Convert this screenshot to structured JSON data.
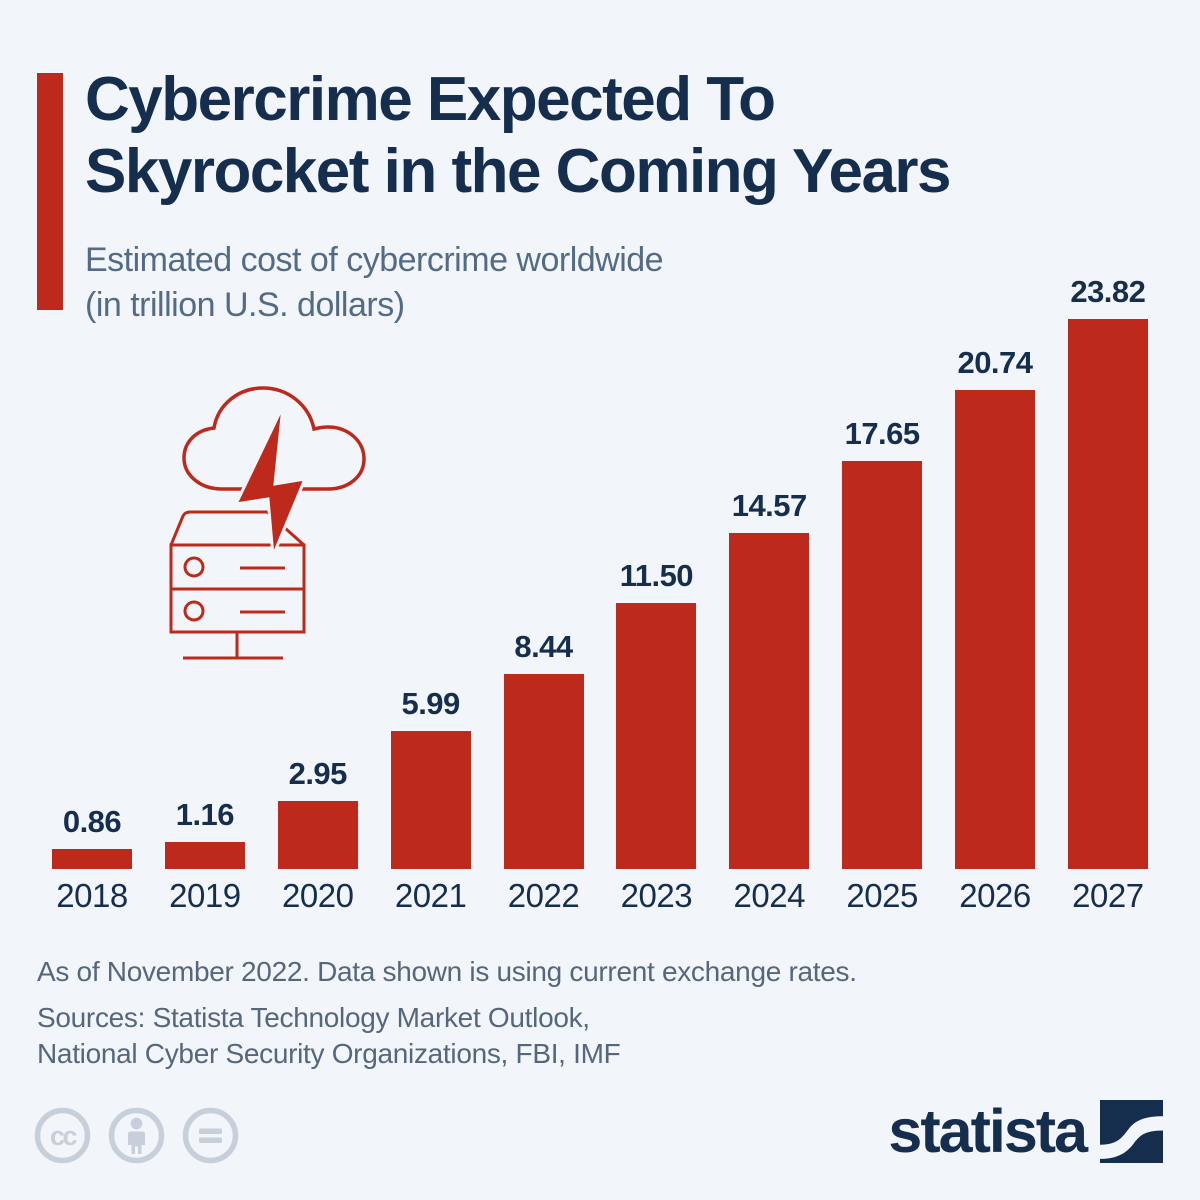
{
  "header": {
    "title_line1": "Cybercrime Expected To",
    "title_line2": "Skyrocket in the Coming Years",
    "subtitle_line1": "Estimated cost of cybercrime worldwide",
    "subtitle_line2": "(in trillion U.S. dollars)"
  },
  "chart_data": {
    "type": "bar",
    "title": "Cybercrime Expected To Skyrocket in the Coming Years",
    "subtitle": "Estimated cost of cybercrime worldwide (in trillion U.S. dollars)",
    "categories": [
      "2018",
      "2019",
      "2020",
      "2021",
      "2022",
      "2023",
      "2024",
      "2025",
      "2026",
      "2027"
    ],
    "values": [
      0.86,
      1.16,
      2.95,
      5.99,
      8.44,
      11.5,
      14.57,
      17.65,
      20.74,
      23.82
    ],
    "value_labels": [
      "0.86",
      "1.16",
      "2.95",
      "5.99",
      "8.44",
      "11.50",
      "14.57",
      "17.65",
      "20.74",
      "23.82"
    ],
    "xlabel": "",
    "ylabel": "Estimated cost of cybercrime worldwide (in trillion U.S. dollars)",
    "ylim": [
      0,
      23.82
    ],
    "grid": false,
    "legend": false,
    "bar_color": "#bd2a1b",
    "label_color": "#152e4d"
  },
  "footer": {
    "note": "As of November 2022. Data shown is using current exchange rates.",
    "sources_line1": "Sources: Statista Technology Market Outlook,",
    "sources_line2": "National Cyber Security Organizations, FBI, IMF"
  },
  "branding": {
    "logo_text": "statista"
  },
  "license_icons": [
    {
      "name": "creative-commons-icon",
      "glyph": "cc"
    },
    {
      "name": "attribution-person-icon",
      "glyph": "person"
    },
    {
      "name": "no-derivatives-equals-icon",
      "glyph": "="
    }
  ],
  "colors": {
    "background": "#f2f5f9",
    "accent_red": "#bd2a1b",
    "navy": "#152e4d",
    "subtitle_blue": "#546b86",
    "footer_gray": "#56677d",
    "icon_gray": "#c7d0da"
  }
}
